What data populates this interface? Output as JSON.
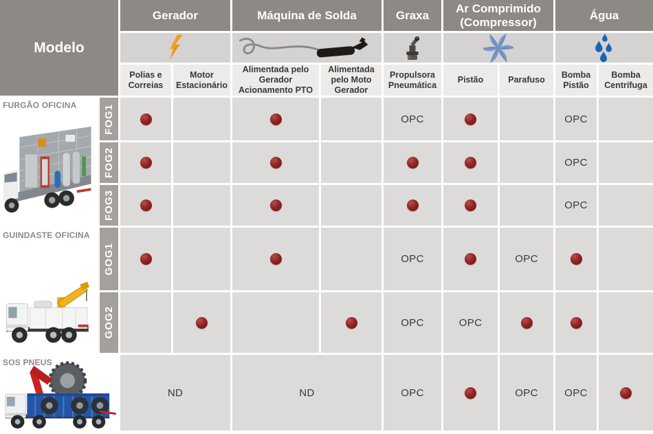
{
  "header": {
    "modelo": "Modelo",
    "groups": [
      {
        "label": "Gerador",
        "icon": "lightning-icon"
      },
      {
        "label": "Máquina de Solda",
        "icon": "welding-cable-icon"
      },
      {
        "label": "Graxa",
        "icon": "grease-fitting-icon"
      },
      {
        "label": "Ar Comprimido (Compressor)",
        "icon": "fan-impeller-icon"
      },
      {
        "label": "Água",
        "icon": "water-drops-icon"
      }
    ],
    "columns": [
      "Polias e Correias",
      "Motor Estacionário",
      "Alimentada pelo Gerador Acionamento PTO",
      "Alimentada pelo Moto Gerador",
      "Propulsora Pneumática",
      "Pistão",
      "Parafuso",
      "Bomba Pistão",
      "Bomba Centrífuga"
    ]
  },
  "cell_value_codes": {
    "dot": "dot",
    "optional": "OPC",
    "not_available": "ND"
  },
  "model_groups": [
    {
      "name": "FURGÃO OFICINA",
      "rows": [
        {
          "code": "FOG1",
          "cells": [
            "dot",
            "",
            "dot",
            "",
            "OPC",
            "dot",
            "",
            "OPC",
            ""
          ]
        },
        {
          "code": "FOG2",
          "cells": [
            "dot",
            "",
            "dot",
            "",
            "dot",
            "dot",
            "",
            "OPC",
            ""
          ]
        },
        {
          "code": "FOG3",
          "cells": [
            "dot",
            "",
            "dot",
            "",
            "dot",
            "dot",
            "",
            "OPC",
            ""
          ]
        }
      ]
    },
    {
      "name": "GUINDASTE OFICINA",
      "rows": [
        {
          "code": "GOG1",
          "cells": [
            "dot",
            "",
            "dot",
            "",
            "OPC",
            "dot",
            "OPC",
            "dot",
            ""
          ]
        },
        {
          "code": "GOG2",
          "cells": [
            "",
            "dot",
            "",
            "dot",
            "OPC",
            "OPC",
            "dot",
            "dot",
            ""
          ]
        }
      ]
    },
    {
      "name": "SOS PNEUS",
      "rows": [
        {
          "code": "",
          "cells": [
            {
              "text": "ND",
              "span": 2
            },
            {
              "text": "ND",
              "span": 2
            },
            "OPC",
            "dot",
            "OPC",
            "OPC",
            "dot"
          ]
        }
      ]
    }
  ],
  "colors": {
    "header_bg": "#8d8984",
    "icon_band_bg": "#d5d3d1",
    "subheader_bg": "#edebe9",
    "cell_bg": "#dcdbd9",
    "code_strip_bg": "#a3a09d",
    "dot_color": "#8c1d1d",
    "text_dark": "#3b3734",
    "white": "#ffffff"
  }
}
